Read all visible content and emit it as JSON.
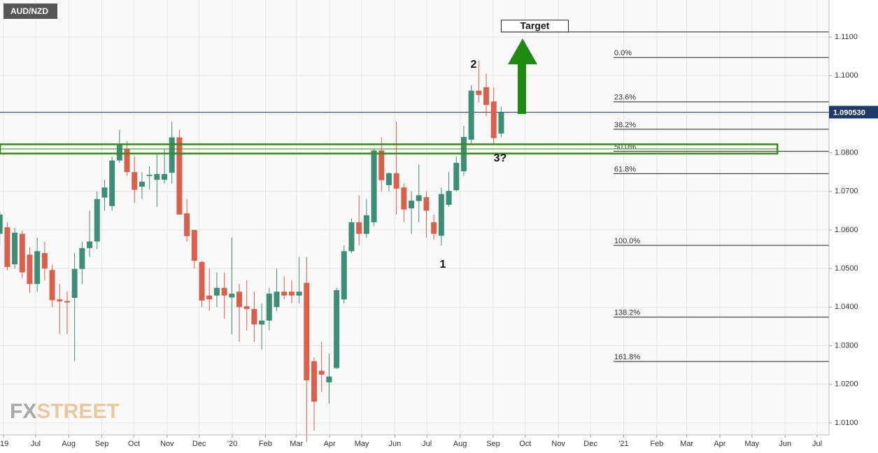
{
  "chart_data": {
    "type": "candlestick",
    "symbol": "AUD/NZD",
    "watermark": [
      "FX",
      "STREET"
    ],
    "up_color": "#3e8e77",
    "down_color": "#d8604c",
    "grid": true,
    "xlim": [
      -0.47,
      110.3
    ],
    "ylim": [
      1.0069,
      1.1196
    ],
    "xticks": [
      {
        "value": 0,
        "label": "'19"
      },
      {
        "value": 4.29,
        "label": "Jul"
      },
      {
        "value": 8.71,
        "label": "Aug"
      },
      {
        "value": 13.14,
        "label": "Sep"
      },
      {
        "value": 17.43,
        "label": "Oct"
      },
      {
        "value": 21.86,
        "label": "Nov"
      },
      {
        "value": 26.14,
        "label": "Dec"
      },
      {
        "value": 30.57,
        "label": "'20"
      },
      {
        "value": 35,
        "label": "Feb"
      },
      {
        "value": 39.14,
        "label": "Mar"
      },
      {
        "value": 43.57,
        "label": "Apr"
      },
      {
        "value": 47.86,
        "label": "May"
      },
      {
        "value": 52.29,
        "label": "Jun"
      },
      {
        "value": 56.57,
        "label": "Jul"
      },
      {
        "value": 61,
        "label": "Aug"
      },
      {
        "value": 65.43,
        "label": "Sep"
      },
      {
        "value": 69.71,
        "label": "Oct"
      },
      {
        "value": 74.14,
        "label": "Nov"
      },
      {
        "value": 78.43,
        "label": "Dec"
      },
      {
        "value": 82.86,
        "label": "'21"
      },
      {
        "value": 87.29,
        "label": "Feb"
      },
      {
        "value": 91.29,
        "label": "Mar"
      },
      {
        "value": 95.71,
        "label": "Apr"
      },
      {
        "value": 100,
        "label": "May"
      },
      {
        "value": 104.43,
        "label": "Jun"
      },
      {
        "value": 108.71,
        "label": "Jul"
      }
    ],
    "yticks": [
      {
        "value": 1.01,
        "label": "1.0100"
      },
      {
        "value": 1.02,
        "label": "1.0200"
      },
      {
        "value": 1.03,
        "label": "1.0300"
      },
      {
        "value": 1.04,
        "label": "1.0400"
      },
      {
        "value": 1.05,
        "label": "1.0500"
      },
      {
        "value": 1.06,
        "label": "1.0600"
      },
      {
        "value": 1.07,
        "label": "1.0700"
      },
      {
        "value": 1.08,
        "label": "1.0800"
      },
      {
        "value": 1.09,
        "label": "1.0900"
      },
      {
        "value": 1.1,
        "label": "1.1000"
      },
      {
        "value": 1.11,
        "label": "1.1100"
      }
    ],
    "x": [
      -0.5,
      0.5,
      1.5,
      2.5,
      3.5,
      4.5,
      5.5,
      6.5,
      7.5,
      8.5,
      9.5,
      10.5,
      11.5,
      12.5,
      13.5,
      14.5,
      15.5,
      16.5,
      17.5,
      18.5,
      19.5,
      20.5,
      21.5,
      22.5,
      23.5,
      24.5,
      25.5,
      26.5,
      27.5,
      28.5,
      29.5,
      30.5,
      31.5,
      32.5,
      33.5,
      34.5,
      35.5,
      36.5,
      37.5,
      38.5,
      39.5,
      40.5,
      41.5,
      42.5,
      43.5,
      44.5,
      45.5,
      46.5,
      47.5,
      48.5,
      49.5,
      50.5,
      51.5,
      52.5,
      53.5,
      54.5,
      55.5,
      56.5,
      57.5,
      58.5,
      59.5,
      60.5,
      61.5,
      62.5,
      63.5,
      64.5,
      65.5,
      66.5
    ],
    "open": [
      1.059,
      1.0607,
      1.0511,
      1.059,
      1.0536,
      1.046,
      1.054,
      1.0496,
      1.042,
      1.0416,
      1.0424,
      1.0499,
      1.0553,
      1.057,
      1.0684,
      1.0662,
      1.078,
      1.081,
      1.075,
      1.0712,
      1.074,
      1.073,
      1.073,
      1.0748,
      1.084,
      1.0643,
      1.06,
      1.0517,
      1.043,
      1.043,
      1.045,
      1.0425,
      1.044,
      1.0402,
      1.0395,
      1.0355,
      1.0365,
      1.04,
      1.044,
      1.044,
      1.043,
      1.0463,
      1.026,
      1.0235,
      1.0205,
      1.0242,
      1.042,
      1.0545,
      1.062,
      1.059,
      1.062,
      1.0806,
      1.0716,
      1.0747,
      1.071,
      1.0656,
      1.0675,
      1.0685,
      1.062,
      1.0585,
      1.0665,
      1.0703,
      1.0752,
      1.0834,
      1.0961,
      1.097,
      1.0933,
      1.085
    ],
    "high": [
      1.065,
      1.062,
      1.0605,
      1.0598,
      1.0555,
      1.058,
      1.057,
      1.051,
      1.046,
      1.044,
      1.054,
      1.057,
      1.065,
      1.07,
      1.073,
      1.079,
      1.086,
      1.083,
      1.079,
      1.075,
      1.0765,
      1.08,
      1.081,
      1.088,
      1.086,
      1.068,
      1.06,
      1.052,
      1.05,
      1.049,
      1.049,
      1.058,
      1.046,
      1.047,
      1.044,
      1.041,
      1.045,
      1.05,
      1.048,
      1.047,
      1.053,
      1.053,
      1.027,
      1.031,
      1.028,
      1.045,
      1.056,
      1.063,
      1.069,
      1.068,
      1.081,
      1.084,
      1.075,
      1.088,
      1.072,
      1.07,
      1.077,
      1.07,
      1.064,
      1.071,
      1.075,
      1.079,
      1.087,
      1.0975,
      1.104,
      1.1005,
      1.097,
      1.092
    ],
    "low": [
      1.056,
      1.0495,
      1.05,
      1.0475,
      1.0437,
      1.044,
      1.047,
      1.04,
      1.033,
      1.033,
      1.026,
      1.046,
      1.053,
      1.055,
      1.065,
      1.065,
      1.0775,
      1.074,
      1.067,
      1.068,
      1.0705,
      1.066,
      1.072,
      1.072,
      1.064,
      1.057,
      1.05,
      1.04,
      1.039,
      1.04,
      1.037,
      1.033,
      1.031,
      1.034,
      1.031,
      1.029,
      1.034,
      1.039,
      1.042,
      1.041,
      1.041,
      1.005,
      1.008,
      1.018,
      1.015,
      1.024,
      1.041,
      1.054,
      1.056,
      1.058,
      1.061,
      1.07,
      1.07,
      1.064,
      1.062,
      1.059,
      1.062,
      1.058,
      1.0575,
      1.056,
      1.066,
      1.07,
      1.074,
      1.082,
      1.093,
      1.0895,
      1.082,
      1.084
    ],
    "close": [
      1.064,
      1.0504,
      1.0593,
      1.049,
      1.046,
      1.0545,
      1.05,
      1.0418,
      1.0415,
      1.0412,
      1.0499,
      1.0553,
      1.057,
      1.068,
      1.071,
      1.078,
      1.082,
      1.075,
      1.0704,
      1.0725,
      1.0743,
      1.0745,
      1.0745,
      1.084,
      1.064,
      1.0584,
      1.052,
      1.0417,
      1.042,
      1.045,
      1.043,
      1.0435,
      1.04,
      1.0395,
      1.0355,
      1.0365,
      1.0435,
      1.044,
      1.043,
      1.043,
      1.044,
      1.021,
      1.0155,
      1.0225,
      1.022,
      1.0444,
      1.0545,
      1.062,
      1.059,
      1.0638,
      1.0806,
      1.0729,
      1.0747,
      1.0707,
      1.0653,
      1.0676,
      1.069,
      1.065,
      1.059,
      1.0693,
      1.0701,
      1.0774,
      1.0841,
      1.0961,
      1.095,
      1.0924,
      1.0838,
      1.09053
    ],
    "current_price": {
      "value": 1.09053,
      "label": "1.090530"
    },
    "current_color": "#1f3a68",
    "fib_levels": [
      {
        "value": 1.1047,
        "label": "0.0%"
      },
      {
        "value": 1.0932,
        "label": "23.6%"
      },
      {
        "value": 1.0861,
        "label": "38.2%"
      },
      {
        "value": 1.0804,
        "label": "50.0%"
      },
      {
        "value": 1.0746,
        "label": "61.8%"
      },
      {
        "value": 1.056,
        "label": "100.0%"
      },
      {
        "value": 1.0374,
        "label": "138.2%"
      },
      {
        "value": 1.0259,
        "label": "161.8%"
      }
    ],
    "fib_start": 81.5,
    "target": {
      "value": 1.1113,
      "label": "Target",
      "start": 66.5
    },
    "zone": {
      "top": 1.0822,
      "bottom": 1.0798,
      "end": 103.4,
      "color": "#3a8a1a"
    },
    "annotations": [
      "1",
      "2",
      "3?"
    ]
  }
}
